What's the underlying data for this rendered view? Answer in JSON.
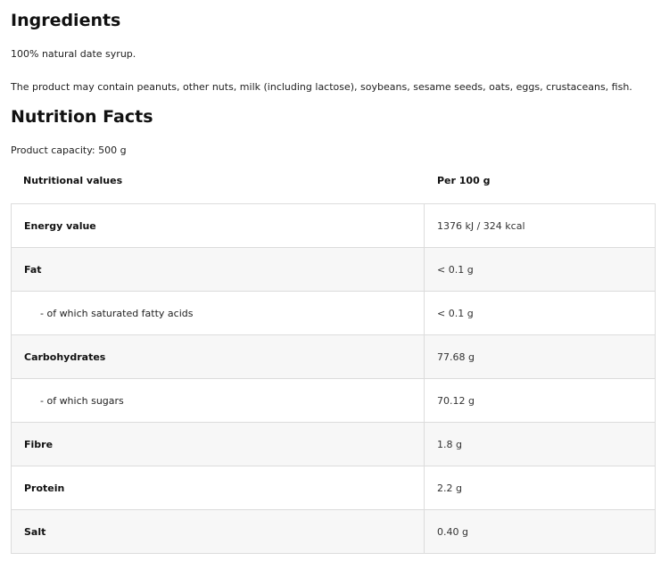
{
  "ingredients": {
    "title": "Ingredients",
    "text": "100% natural date syrup.",
    "allergens": "The product may contain peanuts, other nuts, milk (including lactose), soybeans, sesame seeds, oats, eggs, crustaceans, fish."
  },
  "nutrition": {
    "title": "Nutrition Facts",
    "capacity": "Product capacity: 500 g",
    "headers": [
      "Nutritional values",
      "Per 100 g"
    ],
    "rows": [
      {
        "name": "Energy value",
        "value": "1376 kJ / 324 kcal"
      },
      {
        "name": "Fat",
        "value": "< 0.1 g"
      },
      {
        "name": "- of which saturated fatty acids",
        "value": "< 0.1 g"
      },
      {
        "name": "Carbohydrates",
        "value": "77.68 g"
      },
      {
        "name": "- of which sugars",
        "value": "70.12 g"
      },
      {
        "name": "Fibre",
        "value": "1.8 g"
      },
      {
        "name": "Protein",
        "value": "2.2 g"
      },
      {
        "name": "Salt",
        "value": "0.40 g"
      }
    ]
  }
}
